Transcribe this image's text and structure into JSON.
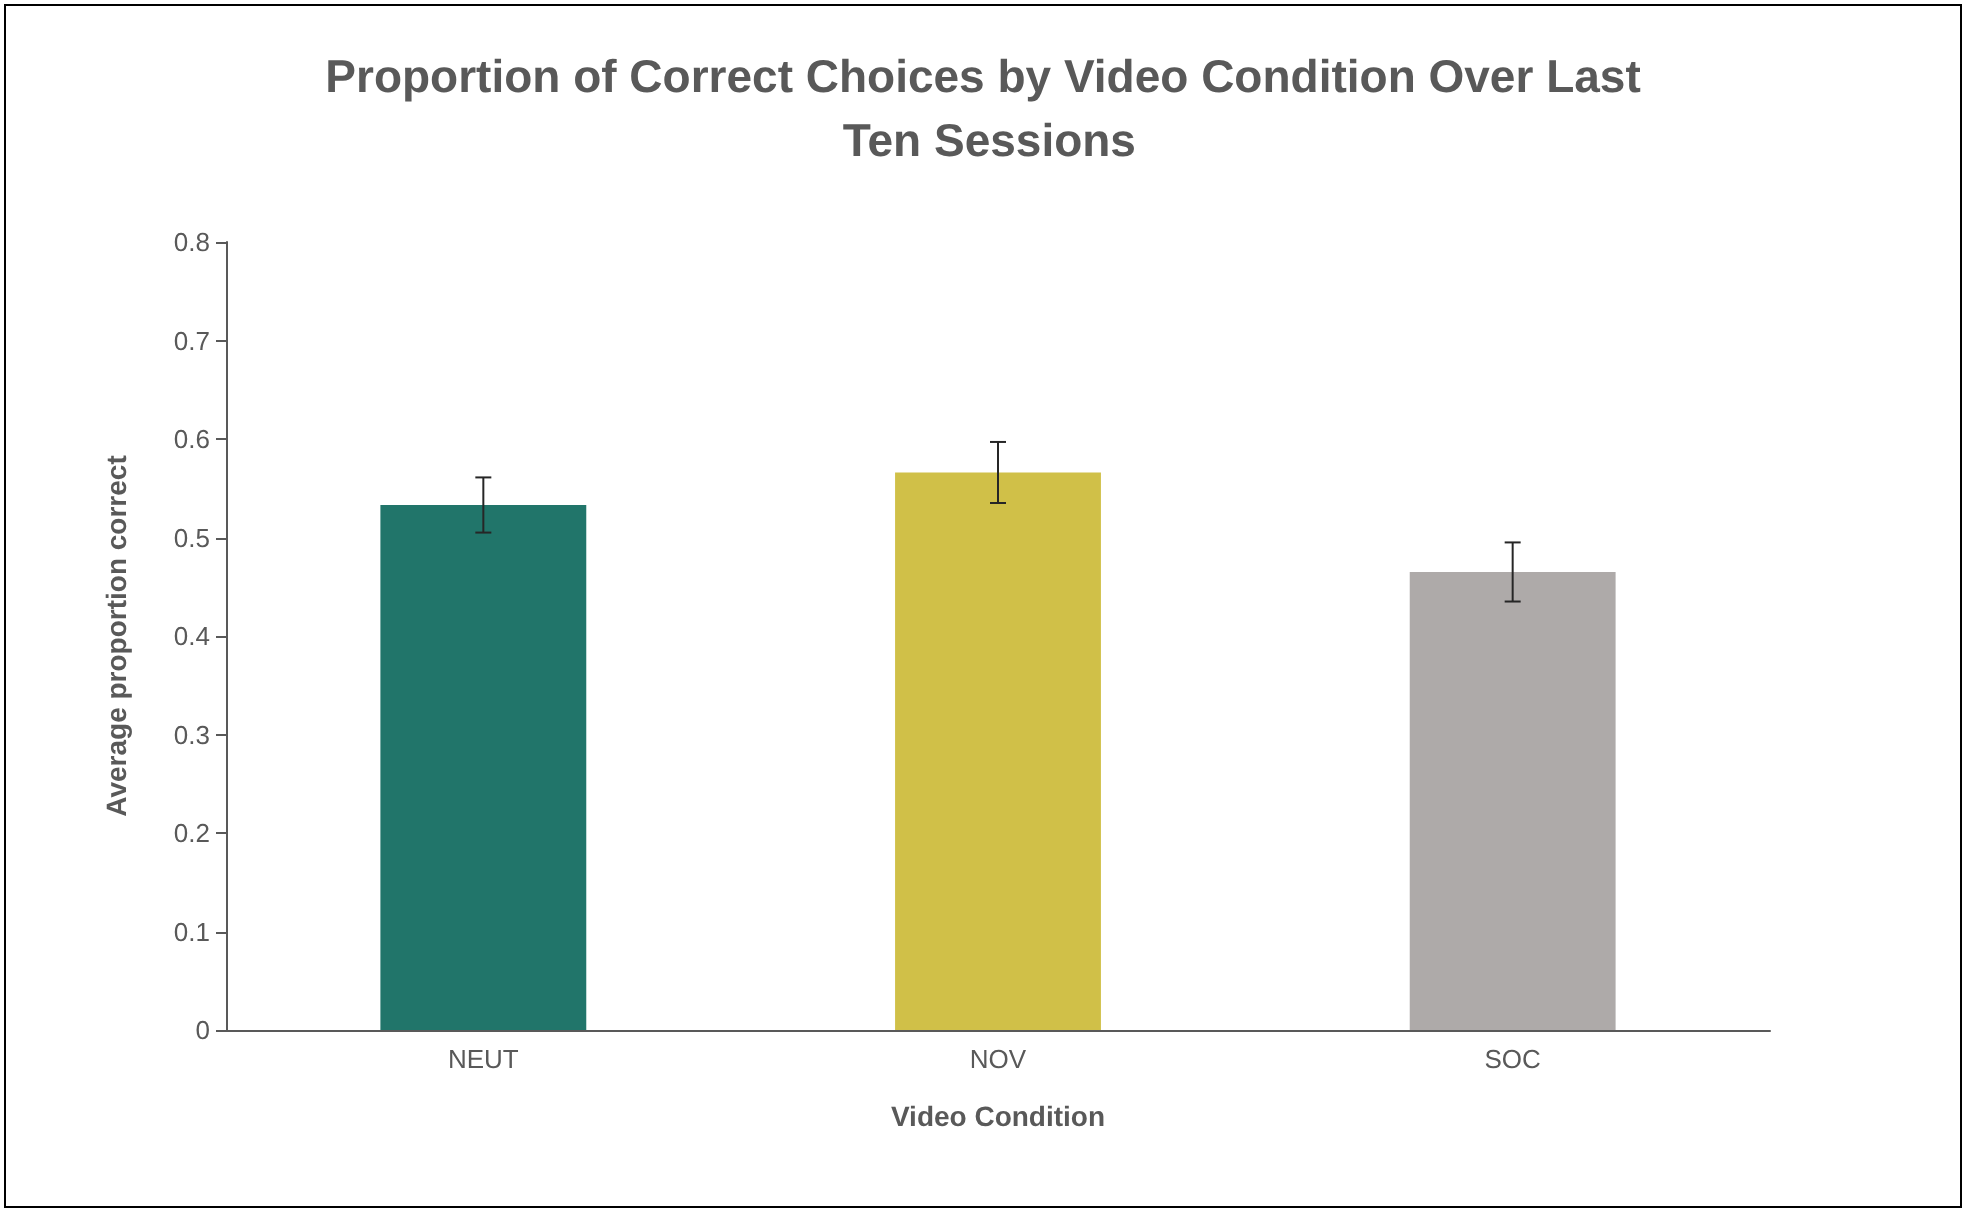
{
  "chart_data": {
    "type": "bar",
    "title": "Proportion of Correct Choices by Video Condition Over Last Ten Sessions",
    "xlabel": "Video Condition",
    "ylabel": "Average proportion correct",
    "categories": [
      "NEUT",
      "NOV",
      "SOC"
    ],
    "values": [
      0.533,
      0.566,
      0.465
    ],
    "colors": [
      "#21756a",
      "#d0c048",
      "#aeaaa9"
    ],
    "errors": [
      0.028,
      0.031,
      0.03
    ],
    "ylim": [
      0,
      0.8
    ],
    "yticks": [
      0,
      0.1,
      0.2,
      0.3,
      0.4,
      0.5,
      0.6,
      0.7,
      0.8
    ],
    "grid": false
  }
}
